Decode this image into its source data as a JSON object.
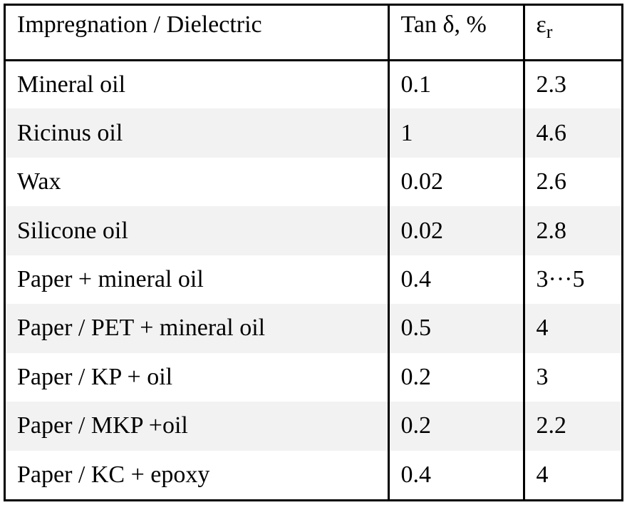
{
  "table": {
    "headers": {
      "col1": "Impregnation / Dielectric",
      "col2": "Tan δ, %",
      "col3_base": "ε",
      "col3_sub": "r"
    },
    "rows": [
      {
        "dielectric": "Mineral oil",
        "tan_delta": "0.1",
        "epsilon_r": "2.3"
      },
      {
        "dielectric": "Ricinus oil",
        "tan_delta": "1",
        "epsilon_r": "4.6"
      },
      {
        "dielectric": "Wax",
        "tan_delta": "0.02",
        "epsilon_r": "2.6"
      },
      {
        "dielectric": "Silicone oil",
        "tan_delta": "0.02",
        "epsilon_r": "2.8"
      },
      {
        "dielectric": "Paper + mineral oil",
        "tan_delta": "0.4",
        "epsilon_r": "3···5"
      },
      {
        "dielectric": "Paper / PET + mineral oil",
        "tan_delta": "0.5",
        "epsilon_r": "4"
      },
      {
        "dielectric": "Paper / KP + oil",
        "tan_delta": "0.2",
        "epsilon_r": "3"
      },
      {
        "dielectric": "Paper / MKP +oil",
        "tan_delta": "0.2",
        "epsilon_r": "2.2"
      },
      {
        "dielectric": "Paper / KC + epoxy",
        "tan_delta": "0.4",
        "epsilon_r": "4"
      }
    ],
    "colors": {
      "border": "#000000",
      "row_shade": "#f2f2f2",
      "background": "#ffffff"
    }
  }
}
